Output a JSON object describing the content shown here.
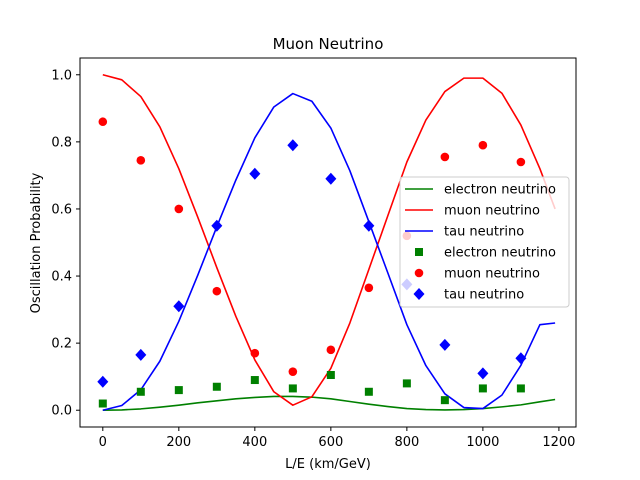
{
  "chart_data": {
    "type": "scatter",
    "title": "Muon Neutrino",
    "xlabel": "L/E (km/GeV)",
    "ylabel": "Oscillation Probability",
    "xlim": [
      -60,
      1245
    ],
    "ylim": [
      -0.05,
      1.05
    ],
    "xticks": [
      "0",
      "200",
      "400",
      "600",
      "800",
      "1000",
      "1200"
    ],
    "yticks": [
      "0.0",
      "0.2",
      "0.4",
      "0.6",
      "0.8",
      "1.0"
    ],
    "grid": false,
    "legend_position": "center-right",
    "curves": [
      {
        "name": "electron neutrino",
        "style": "line",
        "color": "#008000",
        "x": [
          0,
          50,
          100,
          150,
          200,
          250,
          300,
          350,
          400,
          450,
          500,
          550,
          600,
          650,
          700,
          750,
          800,
          850,
          900,
          950,
          1000,
          1050,
          1100,
          1150,
          1190
        ],
        "y": [
          0.0,
          0.001,
          0.004,
          0.009,
          0.015,
          0.022,
          0.028,
          0.034,
          0.038,
          0.041,
          0.041,
          0.039,
          0.034,
          0.026,
          0.018,
          0.011,
          0.005,
          0.002,
          0.001,
          0.002,
          0.005,
          0.01,
          0.016,
          0.025,
          0.032
        ]
      },
      {
        "name": "muon neutrino",
        "style": "line",
        "color": "#ff0000",
        "x": [
          0,
          50,
          100,
          150,
          200,
          250,
          300,
          350,
          400,
          450,
          500,
          550,
          600,
          650,
          700,
          750,
          800,
          850,
          900,
          950,
          1000,
          1050,
          1100,
          1150,
          1190
        ],
        "y": [
          1.0,
          0.985,
          0.935,
          0.845,
          0.72,
          0.575,
          0.425,
          0.28,
          0.15,
          0.055,
          0.015,
          0.04,
          0.125,
          0.26,
          0.42,
          0.58,
          0.74,
          0.865,
          0.95,
          0.99,
          0.99,
          0.945,
          0.85,
          0.72,
          0.6
        ]
      },
      {
        "name": "tau neutrino",
        "style": "line",
        "color": "#0000ff",
        "x": [
          0,
          50,
          100,
          150,
          200,
          250,
          300,
          350,
          400,
          450,
          500,
          550,
          600,
          650,
          700,
          750,
          800,
          850,
          900,
          950,
          1000,
          1050,
          1100,
          1150,
          1190
        ],
        "y": [
          0.0,
          0.014,
          0.061,
          0.146,
          0.265,
          0.403,
          0.547,
          0.686,
          0.812,
          0.904,
          0.944,
          0.921,
          0.841,
          0.714,
          0.562,
          0.409,
          0.255,
          0.133,
          0.049,
          0.008,
          0.005,
          0.045,
          0.134,
          0.255,
          0.26
        ]
      }
    ],
    "series": [
      {
        "name": "electron neutrino",
        "style": "marker",
        "marker": "square",
        "color": "#008000",
        "x": [
          0,
          100,
          200,
          300,
          400,
          500,
          600,
          700,
          800,
          900,
          1000,
          1100
        ],
        "y": [
          0.02,
          0.055,
          0.06,
          0.07,
          0.09,
          0.065,
          0.105,
          0.055,
          0.08,
          0.03,
          0.065,
          0.065
        ]
      },
      {
        "name": "muon neutrino",
        "style": "marker",
        "marker": "circle",
        "color": "#ff0000",
        "x": [
          0,
          100,
          200,
          300,
          400,
          500,
          600,
          700,
          800,
          900,
          1000,
          1100
        ],
        "y": [
          0.86,
          0.745,
          0.6,
          0.355,
          0.17,
          0.115,
          0.18,
          0.365,
          0.52,
          0.755,
          0.79,
          0.74
        ]
      },
      {
        "name": "tau neutrino",
        "style": "marker",
        "marker": "diamond",
        "color": "#0000ff",
        "x": [
          0,
          100,
          200,
          300,
          400,
          500,
          600,
          700,
          800,
          900,
          1000,
          1100
        ],
        "y": [
          0.085,
          0.165,
          0.31,
          0.55,
          0.705,
          0.79,
          0.69,
          0.55,
          0.375,
          0.195,
          0.11,
          0.155
        ]
      }
    ],
    "legend": [
      {
        "label": "electron neutrino",
        "kind": "line",
        "color": "#008000"
      },
      {
        "label": "muon neutrino",
        "kind": "line",
        "color": "#ff0000"
      },
      {
        "label": "tau neutrino",
        "kind": "line",
        "color": "#0000ff"
      },
      {
        "label": "electron neutrino",
        "kind": "square",
        "color": "#008000"
      },
      {
        "label": "muon neutrino",
        "kind": "circle",
        "color": "#ff0000"
      },
      {
        "label": "tau neutrino",
        "kind": "diamond",
        "color": "#0000ff"
      }
    ]
  }
}
